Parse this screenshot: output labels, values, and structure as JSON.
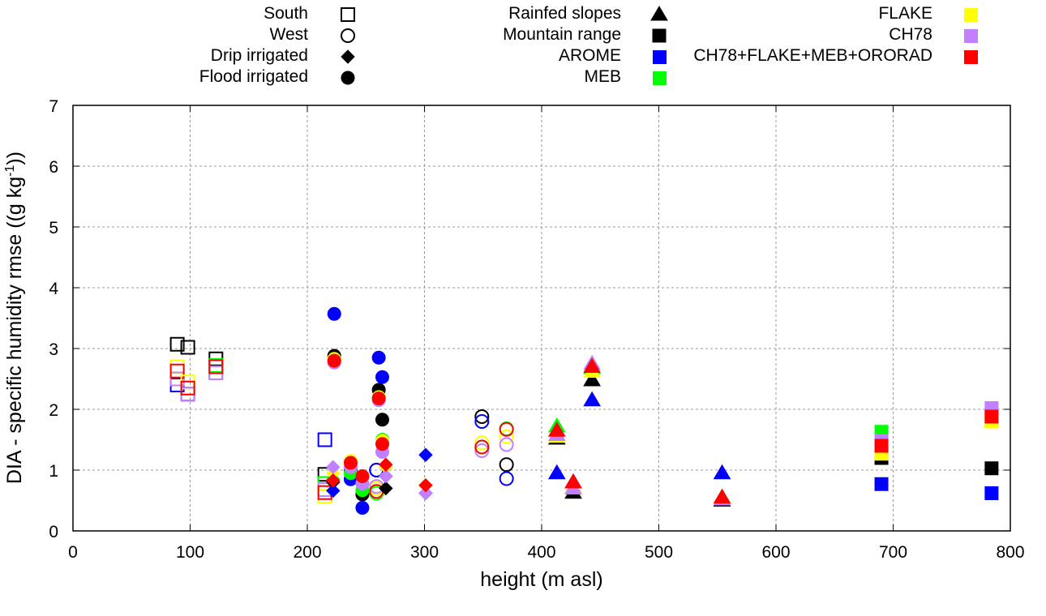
{
  "chart_data": {
    "type": "scatter",
    "title": "",
    "xlabel": "height (m asl)",
    "ylabel_main": "DIA - specific humidity rmse ((g kg",
    "ylabel_sup": "-1",
    "ylabel_end": "))",
    "xlim": [
      0,
      800
    ],
    "ylim": [
      0,
      7
    ],
    "xticks": [
      "0",
      "100",
      "200",
      "300",
      "400",
      "500",
      "600",
      "700",
      "800"
    ],
    "yticks": [
      "0",
      "1",
      "2",
      "3",
      "4",
      "5",
      "6",
      "7"
    ],
    "grid": true,
    "legend_position": "top",
    "shape_legend": [
      {
        "label": "South",
        "shape": "square-open"
      },
      {
        "label": "West",
        "shape": "circle-open"
      },
      {
        "label": "Drip irrigated",
        "shape": "diamond"
      },
      {
        "label": "Flood irrigated",
        "shape": "circle"
      },
      {
        "label": "Rainfed slopes",
        "shape": "triangle"
      },
      {
        "label": "Mountain range",
        "shape": "square"
      }
    ],
    "color_legend": [
      {
        "label": "AROME",
        "color": "#0000ff"
      },
      {
        "label": "MEB",
        "color": "#00ff00"
      },
      {
        "label": "FLAKE",
        "color": "#ffff00"
      },
      {
        "label": "CH78",
        "color": "#c080ff"
      },
      {
        "label": "CH78+FLAKE+MEB+ORORAD",
        "color": "#ff0000"
      }
    ],
    "series": [
      {
        "name": "South",
        "shape": "square-open",
        "points": [
          {
            "x": 89,
            "AROME": 2.4,
            "MEB": 2.7,
            "FLAKE": 2.7,
            "CH78": 2.5,
            "CH78+FLAKE+MEB+ORORAD": 2.63,
            "black": 3.07
          },
          {
            "x": 98,
            "AROME": 2.25,
            "MEB": 2.35,
            "FLAKE": 2.45,
            "CH78": 2.25,
            "CH78+FLAKE+MEB+ORORAD": 2.35,
            "black": 3.02
          },
          {
            "x": 122,
            "AROME": 2.6,
            "MEB": 2.72,
            "FLAKE": 2.6,
            "CH78": 2.6,
            "CH78+FLAKE+MEB+ORORAD": 2.7,
            "black": 2.83
          },
          {
            "x": 215,
            "AROME": 1.5,
            "MEB": 0.78,
            "FLAKE": 0.57,
            "CH78": 0.68,
            "CH78+FLAKE+MEB+ORORAD": 0.63,
            "black": 0.93
          }
        ]
      },
      {
        "name": "West",
        "shape": "circle-open",
        "points": [
          {
            "x": 259,
            "AROME": 1.0,
            "MEB": 0.62,
            "FLAKE": 0.7,
            "CH78": 0.73,
            "CH78+FLAKE+MEB+ORORAD": 0.65,
            "black": 1.0
          },
          {
            "x": 349,
            "AROME": 1.8,
            "MEB": 1.38,
            "FLAKE": 1.45,
            "CH78": 1.32,
            "CH78+FLAKE+MEB+ORORAD": 1.38,
            "black": 1.88
          },
          {
            "x": 370,
            "AROME": 0.86,
            "MEB": 1.68,
            "FLAKE": 1.55,
            "CH78": 1.42,
            "CH78+FLAKE+MEB+ORORAD": 1.67,
            "black": 1.09
          }
        ]
      },
      {
        "name": "Drip irrigated",
        "shape": "diamond",
        "points": [
          {
            "x": 222,
            "AROME": 0.66,
            "MEB": 0.85,
            "FLAKE": 0.95,
            "CH78": 1.05,
            "CH78+FLAKE+MEB+ORORAD": 0.83,
            "black": 0.8
          },
          {
            "x": 267,
            "AROME": 0.9,
            "MEB": 1.05,
            "FLAKE": 1.05,
            "CH78": 0.9,
            "CH78+FLAKE+MEB+ORORAD": 1.09,
            "black": 0.7
          },
          {
            "x": 301,
            "AROME": 1.25,
            "MEB": 0.75,
            "FLAKE": 0.75,
            "CH78": 0.62,
            "CH78+FLAKE+MEB+ORORAD": 0.75,
            "black": 0.62
          }
        ]
      },
      {
        "name": "Flood irrigated",
        "shape": "circle",
        "points": [
          {
            "x": 223,
            "AROME": 3.57,
            "MEB": 2.8,
            "FLAKE": 2.83,
            "CH78": 2.77,
            "CH78+FLAKE+MEB+ORORAD": 2.8,
            "black": 2.88
          },
          {
            "x": 237,
            "AROME": 0.85,
            "MEB": 0.95,
            "FLAKE": 1.15,
            "CH78": 1.05,
            "CH78+FLAKE+MEB+ORORAD": 1.12,
            "black": 1.0
          },
          {
            "x": 247,
            "AROME": 0.38,
            "MEB": 0.67,
            "FLAKE": 0.9,
            "CH78": 0.78,
            "CH78+FLAKE+MEB+ORORAD": 0.9,
            "black": 0.6
          },
          {
            "x": 261,
            "AROME": 2.85,
            "MEB": 2.2,
            "FLAKE": 2.2,
            "CH78": 2.15,
            "CH78+FLAKE+MEB+ORORAD": 2.18,
            "black": 2.32
          },
          {
            "x": 264,
            "AROME": 2.53,
            "MEB": 1.5,
            "FLAKE": 1.48,
            "CH78": 1.3,
            "CH78+FLAKE+MEB+ORORAD": 1.43,
            "black": 1.83
          }
        ]
      },
      {
        "name": "Rainfed slopes",
        "shape": "triangle",
        "points": [
          {
            "x": 413,
            "AROME": 0.95,
            "MEB": 1.72,
            "FLAKE": 1.55,
            "CH78": 1.58,
            "CH78+FLAKE+MEB+ORORAD": 1.65,
            "black": 1.52
          },
          {
            "x": 427,
            "AROME": 0.8,
            "MEB": 0.72,
            "FLAKE": 0.72,
            "CH78": 0.7,
            "CH78+FLAKE+MEB+ORORAD": 0.8,
            "black": 0.63
          },
          {
            "x": 443,
            "AROME": 2.15,
            "MEB": 2.68,
            "FLAKE": 2.62,
            "CH78": 2.75,
            "CH78+FLAKE+MEB+ORORAD": 2.7,
            "black": 2.48
          },
          {
            "x": 554,
            "AROME": 0.95,
            "MEB": 0.55,
            "FLAKE": 0.55,
            "CH78": 0.52,
            "CH78+FLAKE+MEB+ORORAD": 0.55,
            "black": 0.5
          }
        ]
      },
      {
        "name": "Mountain range",
        "shape": "square",
        "points": [
          {
            "x": 690,
            "AROME": 0.77,
            "MEB": 1.63,
            "FLAKE": 1.27,
            "CH78": 1.48,
            "CH78+FLAKE+MEB+ORORAD": 1.4,
            "black": 1.2
          },
          {
            "x": 784,
            "AROME": 0.62,
            "MEB": 1.8,
            "FLAKE": 1.8,
            "CH78": 2.02,
            "CH78+FLAKE+MEB+ORORAD": 1.88,
            "black": 1.03
          }
        ]
      }
    ]
  }
}
